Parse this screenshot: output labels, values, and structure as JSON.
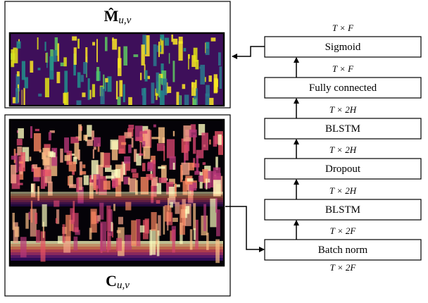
{
  "panels": [
    {
      "label": "M̂",
      "subscript": "u,v"
    },
    {
      "label": "C",
      "subscript": "u,v"
    }
  ],
  "blocks": [
    {
      "label": "Sigmoid",
      "dim_above": "T × F"
    },
    {
      "label": "Fully connected",
      "dim_above": "T × F"
    },
    {
      "label": "BLSTM",
      "dim_above": "T × 2H"
    },
    {
      "label": "Dropout",
      "dim_above": "T × 2H"
    },
    {
      "label": "BLSTM",
      "dim_above": "T × 2H"
    },
    {
      "label": "Batch norm",
      "dim_above": "T × 2F",
      "dim_below": "T × 2F"
    }
  ]
}
